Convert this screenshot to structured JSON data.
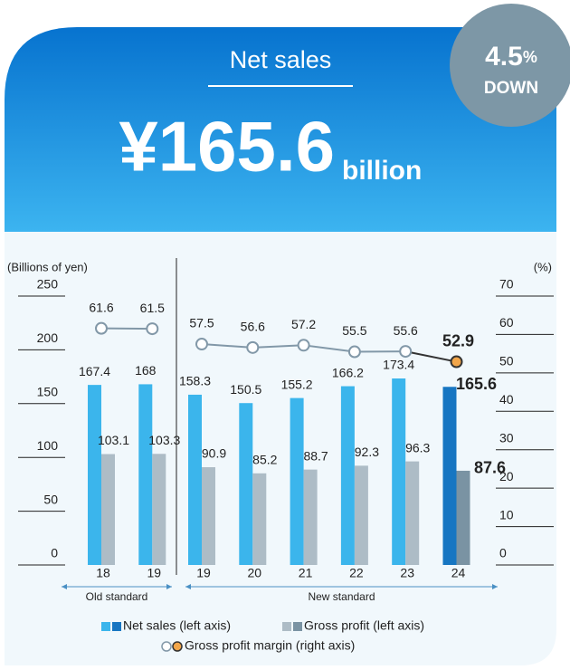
{
  "chart_data": {
    "type": "bar",
    "title": "Net sales",
    "headline_value": "¥165.6",
    "headline_unit": "billion",
    "change_value": "4.5",
    "change_unit": "%",
    "change_direction": "DOWN",
    "y_label": "(Billions of yen)",
    "y2_label": "(%)",
    "group_labels": [
      "Old standard",
      "New standard"
    ],
    "categories": [
      [
        "18",
        "19"
      ],
      [
        "19",
        "20",
        "21",
        "22",
        "23",
        "24"
      ]
    ],
    "ylim": [
      0,
      250
    ],
    "yticks": [
      0,
      50,
      100,
      150,
      200,
      250
    ],
    "y2lim": [
      0,
      70
    ],
    "y2ticks": [
      0,
      10,
      20,
      30,
      40,
      50,
      60,
      70
    ],
    "series": [
      {
        "name": "Net sales (left axis)",
        "color": "#3bb5ec",
        "highlight_color": "#1776c2",
        "values": [
          [
            167.4,
            168.0
          ],
          [
            158.3,
            150.5,
            155.2,
            166.2,
            173.4,
            165.6
          ]
        ]
      },
      {
        "name": "Gross profit (left axis)",
        "color": "#adbcc6",
        "highlight_color": "#7a93a3",
        "values": [
          [
            103.1,
            103.3
          ],
          [
            90.9,
            85.2,
            88.7,
            92.3,
            96.3,
            87.6
          ]
        ]
      },
      {
        "name": "Gross profit margin (right axis)",
        "axis": "y2",
        "type": "line",
        "color": "#8298a8",
        "highlight_color": "#f2a64a",
        "values": [
          [
            61.6,
            61.5
          ],
          [
            57.5,
            56.6,
            57.2,
            55.5,
            55.6,
            52.9
          ]
        ]
      }
    ]
  }
}
